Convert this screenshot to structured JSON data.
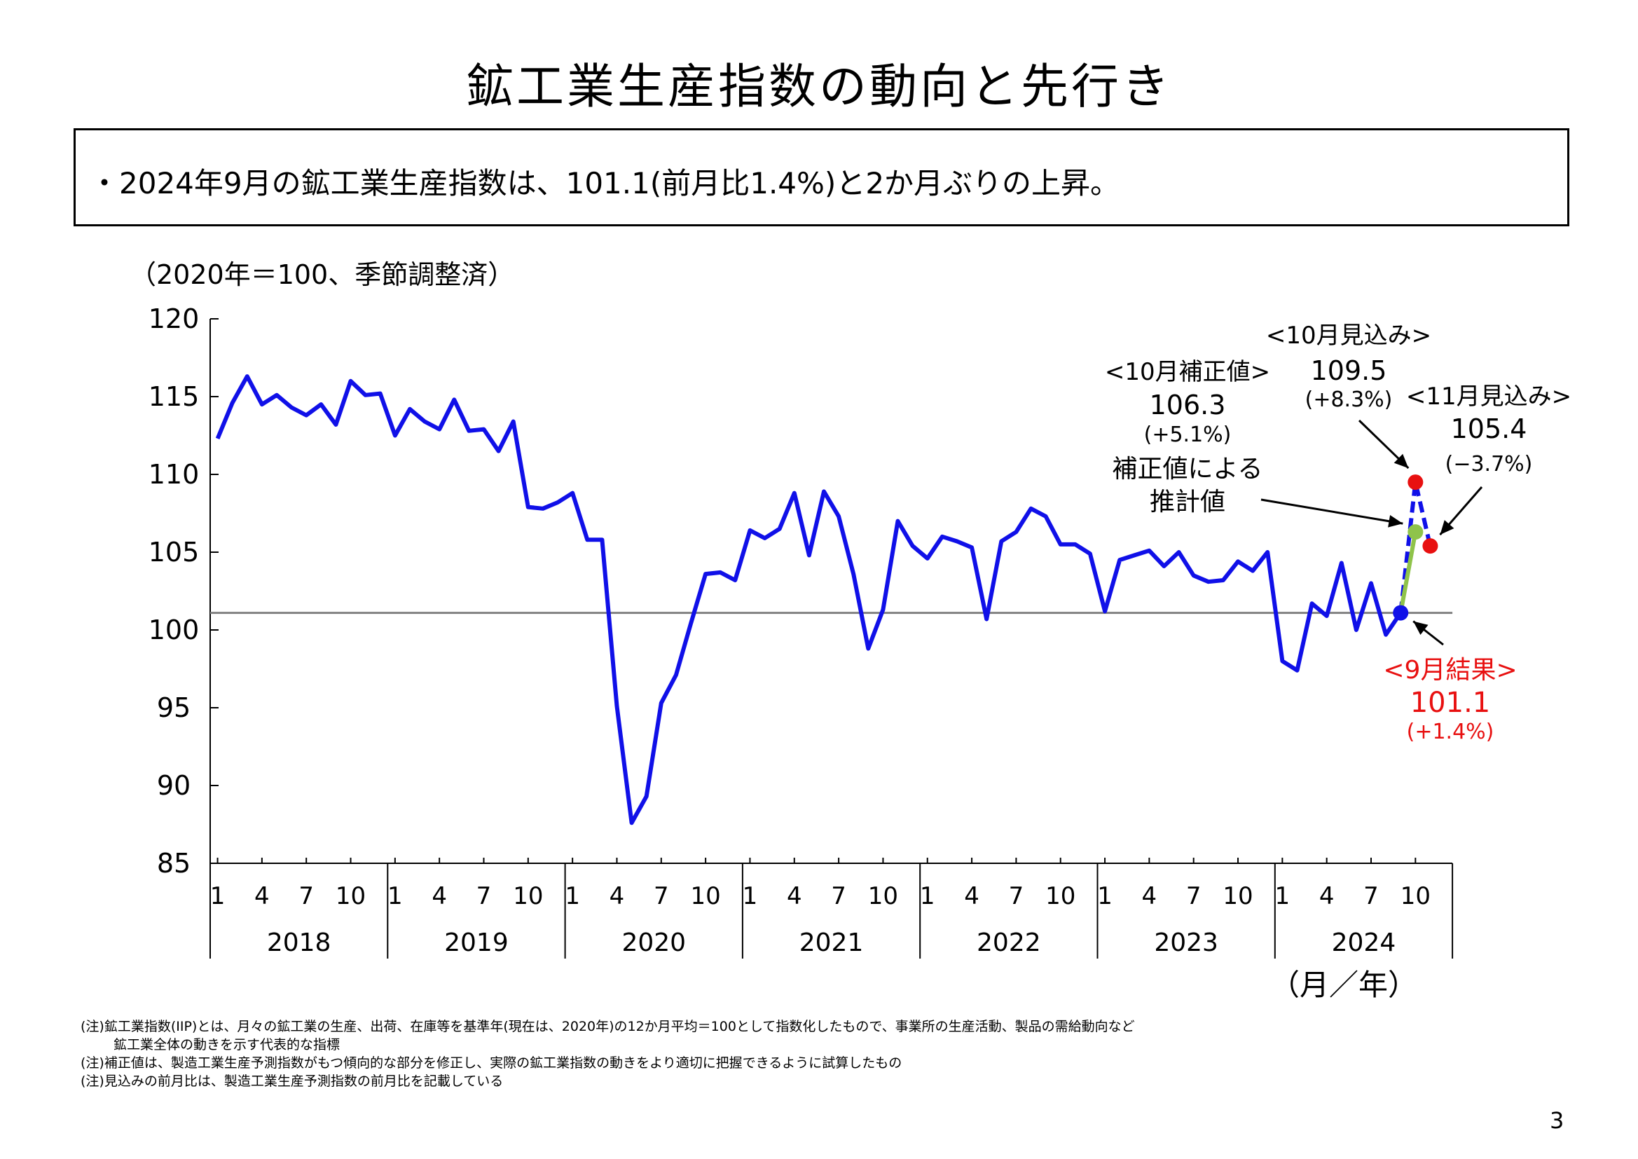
{
  "title": "鉱工業生産指数の動向と先行き",
  "summary": "・2024年9月の鉱工業生産指数は、101.1(前月比1.4%)と2か月ぶりの上昇。",
  "chart_data": {
    "type": "line",
    "unit_label": "（2020年＝100、季節調整済）",
    "x_unit_label": "（月／年）",
    "ylim": [
      85,
      120
    ],
    "yticks": [
      120,
      115,
      110,
      105,
      100,
      95,
      90,
      85
    ],
    "years": [
      "2018",
      "2019",
      "2020",
      "2021",
      "2022",
      "2023",
      "2024"
    ],
    "month_ticks": [
      "1",
      "4",
      "7",
      "10"
    ],
    "reference_line": 101.1,
    "series": [
      {
        "color": "#1010e8",
        "start": "2018-01",
        "values": [
          112.3,
          114.6,
          116.3,
          114.5,
          115.1,
          114.3,
          113.8,
          114.5,
          113.2,
          116.0,
          115.1,
          115.2,
          112.5,
          114.2,
          113.4,
          112.9,
          114.8,
          112.8,
          112.9,
          111.5,
          113.4,
          107.9,
          107.8,
          108.2,
          108.8,
          105.8,
          105.8,
          95.1,
          87.6,
          89.3,
          95.3,
          97.1,
          100.4,
          103.6,
          103.7,
          103.2,
          106.4,
          105.9,
          106.5,
          108.8,
          104.8,
          108.9,
          107.3,
          103.6,
          98.8,
          101.3,
          107.0,
          105.4,
          104.6,
          106.0,
          105.7,
          105.3,
          100.7,
          105.7,
          106.3,
          107.8,
          107.3,
          105.5,
          105.5,
          104.9,
          101.2,
          104.5,
          104.8,
          105.1,
          104.1,
          105.0,
          103.5,
          103.1,
          103.2,
          104.4,
          103.8,
          105.0,
          98.0,
          97.4,
          101.7,
          100.9,
          104.3,
          100.0,
          103.0,
          99.7,
          101.1
        ]
      }
    ],
    "forecast": {
      "color": "#1010e8",
      "points": [
        [
          "2024-09",
          101.1
        ],
        [
          "2024-10",
          109.5
        ],
        [
          "2024-11",
          105.4
        ]
      ]
    },
    "corrected": {
      "color": "#8fc34a",
      "points": [
        [
          "2024-09",
          101.1
        ],
        [
          "2024-10",
          106.3
        ]
      ]
    },
    "markers": [
      {
        "date": "2024-09",
        "value": 101.1,
        "color": "#1010e8"
      },
      {
        "date": "2024-10",
        "value": 109.5,
        "color": "#e81010"
      },
      {
        "date": "2024-11",
        "value": 105.4,
        "color": "#e81010"
      },
      {
        "date": "2024-10",
        "value": 106.3,
        "color": "#8fc34a"
      }
    ],
    "annotations": {
      "oct_corrected": {
        "label": "<10月補正値>",
        "value": "106.3",
        "change": "(+5.1%)"
      },
      "estimate_note": [
        "補正値による",
        "推計値"
      ],
      "oct_forecast": {
        "label": "<10月見込み>",
        "value": "109.5",
        "change": "(+8.3%)"
      },
      "nov_forecast": {
        "label": "<11月見込み>",
        "value": "105.4",
        "change": "(−3.7%)"
      },
      "sep_result": {
        "label": "<9月結果>",
        "value": "101.1",
        "change": "(+1.4%)",
        "color": "#e81010"
      }
    }
  },
  "notes": [
    "(注)鉱工業指数(IIP)とは、月々の鉱工業の生産、出荷、在庫等を基準年(現在は、2020年)の12か月平均＝100として指数化したもので、事業所の生産活動、製品の需給動向など",
    "鉱工業全体の動きを示す代表的な指標",
    "(注)補正値は、製造工業生産予測指数がもつ傾向的な部分を修正し、実際の鉱工業指数の動きをより適切に把握できるように試算したもの",
    "(注)見込みの前月比は、製造工業生産予測指数の前月比を記載している"
  ],
  "page_number": "3"
}
